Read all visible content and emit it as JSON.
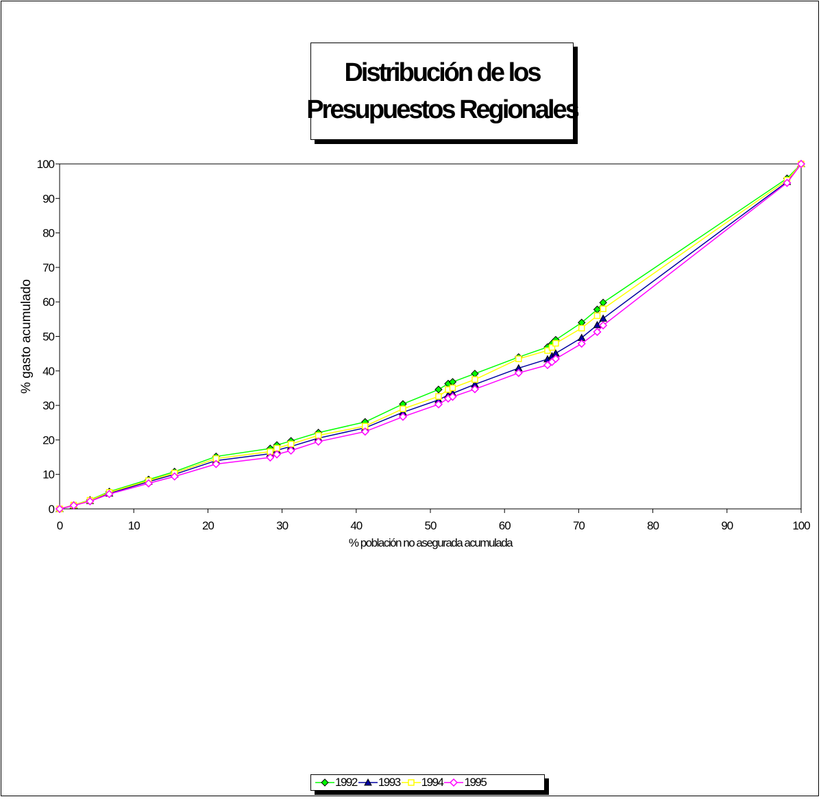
{
  "chart_data": {
    "type": "line",
    "title": [
      "Distribución de los",
      "Presupuestos Regionales"
    ],
    "xlabel": "% población no asegurada acumulada",
    "ylabel": "% gasto acumulado",
    "xlim": [
      0,
      100
    ],
    "ylim": [
      0,
      100
    ],
    "xticks": [
      0,
      10,
      20,
      30,
      40,
      50,
      60,
      70,
      80,
      90,
      100
    ],
    "yticks": [
      0,
      10,
      20,
      30,
      40,
      50,
      60,
      70,
      80,
      90,
      100
    ],
    "grid": false,
    "legend_position": "bottom",
    "x": [
      0,
      1.9,
      4.1,
      6.7,
      12.0,
      15.5,
      21.1,
      28.4,
      29.3,
      31.2,
      34.9,
      41.2,
      46.3,
      51.1,
      52.4,
      53.0,
      56.0,
      61.9,
      65.8,
      66.4,
      66.9,
      70.4,
      72.5,
      73.3,
      98.1,
      100
    ],
    "series": [
      {
        "name": "1992",
        "color": "#00ff00",
        "marker": "diamond-filled",
        "values": [
          0,
          1.1,
          2.6,
          5.0,
          8.5,
          10.8,
          15.2,
          17.5,
          18.5,
          19.7,
          22.1,
          25.2,
          30.4,
          34.6,
          36.3,
          36.8,
          39.2,
          44.0,
          46.9,
          47.9,
          49.0,
          54.0,
          57.8,
          59.8,
          95.8,
          100
        ]
      },
      {
        "name": "1993",
        "color": "#0000a0",
        "marker": "triangle-filled",
        "values": [
          0,
          1.0,
          2.3,
          4.5,
          7.9,
          10.0,
          14.0,
          16.0,
          17.0,
          18.1,
          20.5,
          23.5,
          28.0,
          31.6,
          33.0,
          33.5,
          36.1,
          40.8,
          43.4,
          44.3,
          45.1,
          49.6,
          53.3,
          55.2,
          94.8,
          100
        ]
      },
      {
        "name": "1994",
        "color": "#ffff00",
        "marker": "square-open",
        "values": [
          0,
          1.1,
          2.5,
          4.8,
          8.2,
          10.4,
          14.6,
          16.6,
          17.6,
          18.8,
          21.3,
          24.0,
          29.0,
          32.6,
          34.6,
          35.1,
          37.5,
          43.5,
          45.9,
          46.8,
          48.0,
          52.4,
          56.0,
          58.0,
          95.3,
          100
        ]
      },
      {
        "name": "1995",
        "color": "#ff00ff",
        "marker": "diamond-open",
        "values": [
          0,
          1.0,
          2.2,
          4.3,
          7.4,
          9.4,
          13.0,
          14.9,
          15.8,
          16.9,
          19.5,
          22.4,
          26.7,
          30.3,
          32.0,
          32.5,
          34.7,
          39.4,
          41.7,
          42.6,
          43.5,
          47.9,
          51.3,
          53.2,
          94.5,
          100
        ]
      }
    ]
  }
}
